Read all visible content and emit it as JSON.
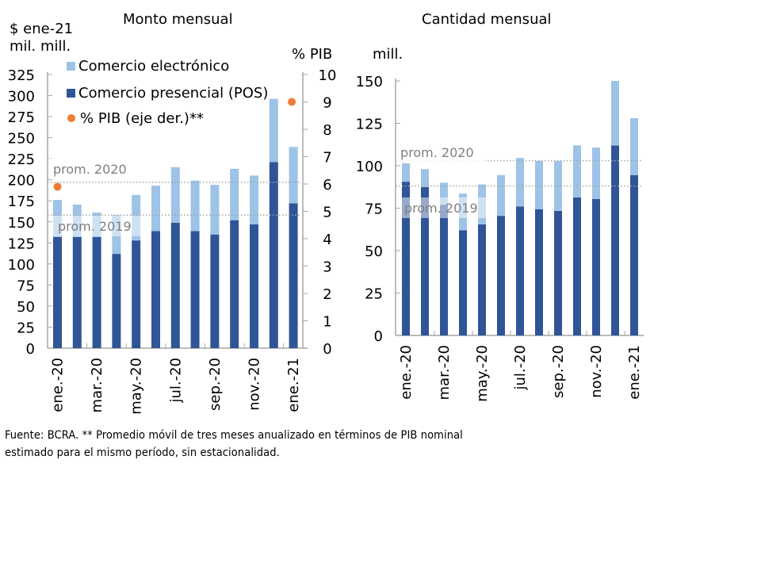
{
  "colors": {
    "online": "#9DC3E6",
    "pos": "#2F5597",
    "gdp": "#ED7D31",
    "axis": "#A6A6A6",
    "ref_line": "#A6A6A6",
    "ref_label": "#7F7F7F"
  },
  "legend": {
    "online": "Comercio electrónico",
    "pos": "Comercio presencial (POS)",
    "gdp": "% PIB (eje der.)**"
  },
  "footnote": {
    "line1": "Fuente: BCRA. ** Promedio móvil de tres meses anualizado en términos de PIB nominal",
    "line2": "estimado para el mismo período, sin estacionalidad."
  },
  "chart_data": [
    {
      "type": "bar",
      "stacked": true,
      "title": "Monto mensual",
      "ylabel": "$ ene-21 mil. mill.",
      "ylabel_lines": [
        "$ ene-21",
        "mil. mill."
      ],
      "y2label": "% PIB",
      "ylim": [
        0,
        325
      ],
      "y2lim": [
        0,
        10
      ],
      "yticks": [
        0,
        25,
        50,
        75,
        100,
        125,
        150,
        175,
        200,
        225,
        250,
        275,
        300,
        325
      ],
      "y2ticks": [
        0,
        1,
        2,
        3,
        4,
        5,
        6,
        7,
        8,
        9,
        10
      ],
      "categories": [
        "ene.-20",
        "feb.-20",
        "mar.-20",
        "abr.-20",
        "may.-20",
        "jun.-20",
        "jul.-20",
        "ago.-20",
        "sep.-20",
        "oct.-20",
        "nov.-20",
        "dic.-20",
        "ene.-21"
      ],
      "xtick_labels": [
        "ene.-20",
        "mar.-20",
        "may.-20",
        "jul.-20",
        "sep.-20",
        "nov.-20",
        "ene.-21"
      ],
      "series": [
        {
          "name": "Comercio presencial (POS)",
          "key": "pos",
          "values": [
            132,
            132,
            132,
            112,
            128,
            139,
            149,
            139,
            135,
            152,
            147,
            221,
            172
          ]
        },
        {
          "name": "Comercio electrónico",
          "key": "online",
          "values": [
            44,
            38.5,
            29,
            46,
            54,
            54,
            66,
            60,
            59,
            61,
            58,
            75,
            67
          ]
        },
        {
          "name": "% PIB (eje der.)**",
          "key": "gdp",
          "axis": "right",
          "type": "scatter",
          "points": [
            {
              "category": "ene.-20",
              "value": 5.9
            },
            {
              "category": "ene.-21",
              "value": 9.0
            }
          ]
        }
      ],
      "reference_lines": [
        {
          "label": "prom. 2020",
          "value": 197
        },
        {
          "label": "prom. 2019",
          "value": 158
        }
      ],
      "legend_position": "top-left"
    },
    {
      "type": "bar",
      "stacked": true,
      "title": "Cantidad mensual",
      "ylabel": "mill.",
      "ylim": [
        0,
        150
      ],
      "yticks": [
        0,
        25,
        50,
        75,
        100,
        125,
        150
      ],
      "categories": [
        "ene.-20",
        "feb.-20",
        "mar.-20",
        "abr.-20",
        "may.-20",
        "jun.-20",
        "jul.-20",
        "ago.-20",
        "sep.-20",
        "oct.-20",
        "nov.-20",
        "dic.-20",
        "ene.-21"
      ],
      "xtick_labels": [
        "ene.-20",
        "mar.-20",
        "may.-20",
        "jul.-20",
        "sep.-20",
        "nov.-20",
        "ene.-21"
      ],
      "series": [
        {
          "name": "Comercio presencial (POS)",
          "key": "pos",
          "values": [
            90.6,
            87.4,
            77,
            62,
            65.5,
            70.5,
            76,
            74.3,
            73.4,
            81.3,
            80.4,
            112,
            94.4
          ]
        },
        {
          "name": "Comercio electrónico",
          "key": "online",
          "values": [
            10.8,
            10.6,
            13,
            21.6,
            23.5,
            24,
            28.6,
            28.5,
            29.4,
            30.7,
            30.3,
            38,
            33.6
          ]
        }
      ],
      "reference_lines": [
        {
          "label": "prom. 2020",
          "value": 103
        },
        {
          "label": "prom. 2019",
          "value": 88
        }
      ]
    }
  ]
}
